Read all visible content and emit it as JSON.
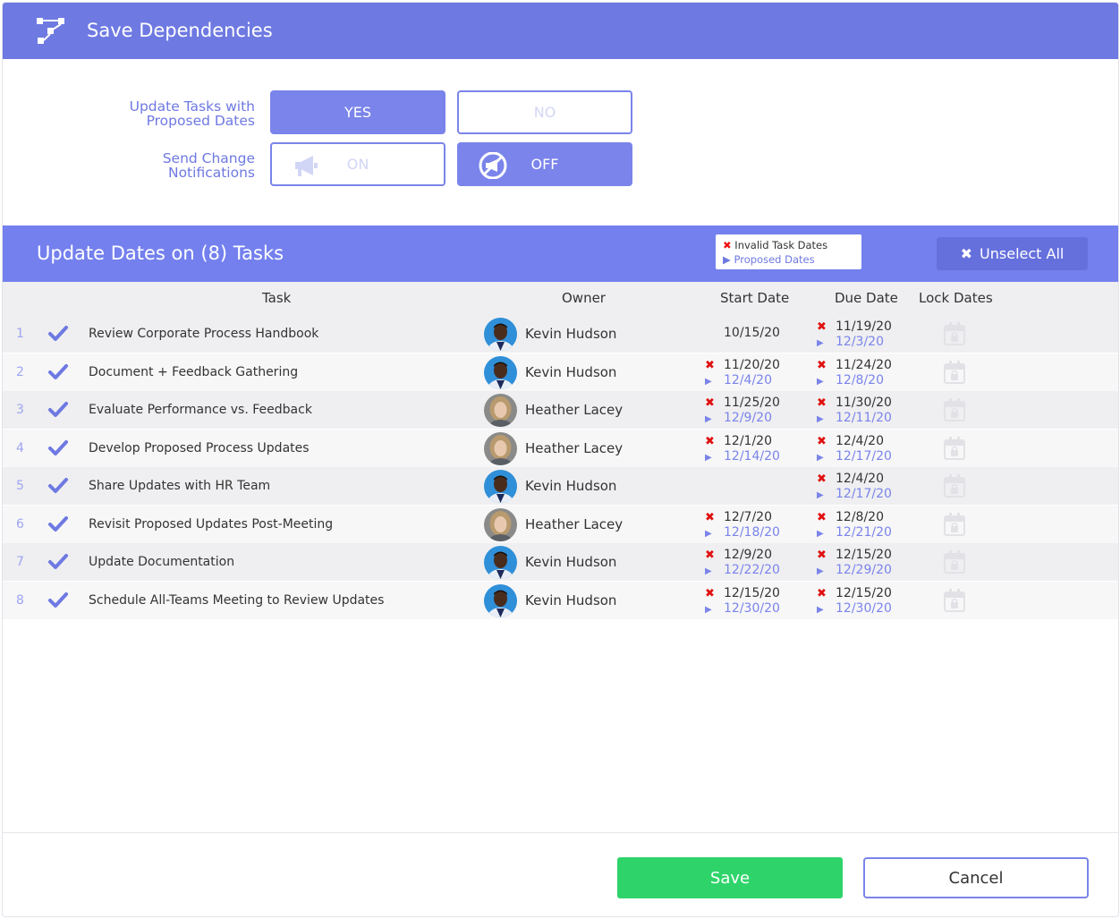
{
  "header": {
    "title": "Save Dependencies",
    "icon": "dependency-icon"
  },
  "options": {
    "update_tasks_label": "Update Tasks with Proposed Dates",
    "update_tasks_label_line1": "Update Tasks with",
    "update_tasks_label_line2": "Proposed Dates",
    "yes_label": "YES",
    "no_label": "NO",
    "notify_label_line1": "Send Change",
    "notify_label_line2": "Notifications",
    "on_label": "ON",
    "off_label": "OFF",
    "update_tasks_value": "YES",
    "notify_value": "OFF"
  },
  "section": {
    "title": "Update Dates on (8) Tasks",
    "legend_invalid": "Invalid Task Dates",
    "legend_proposed": "Proposed Dates",
    "unselect_all": "Unselect All"
  },
  "table": {
    "columns": {
      "task": "Task",
      "owner": "Owner",
      "start": "Start Date",
      "due": "Due Date",
      "lock": "Lock Dates"
    },
    "rows": [
      {
        "num": "1",
        "task": "Review Corporate Process Handbook",
        "owner": "Kevin Hudson",
        "start_old": "10/15/20",
        "start_new": "",
        "due_old": "11/19/20",
        "due_new": "12/3/20"
      },
      {
        "num": "2",
        "task": "Document + Feedback Gathering",
        "owner": "Kevin Hudson",
        "start_old": "11/20/20",
        "start_new": "12/4/20",
        "due_old": "11/24/20",
        "due_new": "12/8/20"
      },
      {
        "num": "3",
        "task": "Evaluate Performance vs. Feedback",
        "owner": "Heather Lacey",
        "start_old": "11/25/20",
        "start_new": "12/9/20",
        "due_old": "11/30/20",
        "due_new": "12/11/20"
      },
      {
        "num": "4",
        "task": "Develop Proposed Process Updates",
        "owner": "Heather Lacey",
        "start_old": "12/1/20",
        "start_new": "12/14/20",
        "due_old": "12/4/20",
        "due_new": "12/17/20"
      },
      {
        "num": "5",
        "task": "Share Updates with HR Team",
        "owner": "Kevin Hudson",
        "start_old": "",
        "start_new": "",
        "due_old": "12/4/20",
        "due_new": "12/17/20"
      },
      {
        "num": "6",
        "task": "Revisit Proposed Updates Post-Meeting",
        "owner": "Heather Lacey",
        "start_old": "12/7/20",
        "start_new": "12/18/20",
        "due_old": "12/8/20",
        "due_new": "12/21/20"
      },
      {
        "num": "7",
        "task": "Update Documentation",
        "owner": "Kevin Hudson",
        "start_old": "12/9/20",
        "start_new": "12/22/20",
        "due_old": "12/15/20",
        "due_new": "12/29/20"
      },
      {
        "num": "8",
        "task": "Schedule All-Teams Meeting to Review Updates",
        "owner": "Kevin Hudson",
        "start_old": "12/15/20",
        "start_new": "12/30/20",
        "due_old": "12/15/20",
        "due_new": "12/30/20"
      }
    ]
  },
  "footer": {
    "save": "Save",
    "cancel": "Cancel"
  },
  "colors": {
    "accent": "#6e79e2",
    "save": "#2ed46a",
    "invalid": "#e01010"
  }
}
